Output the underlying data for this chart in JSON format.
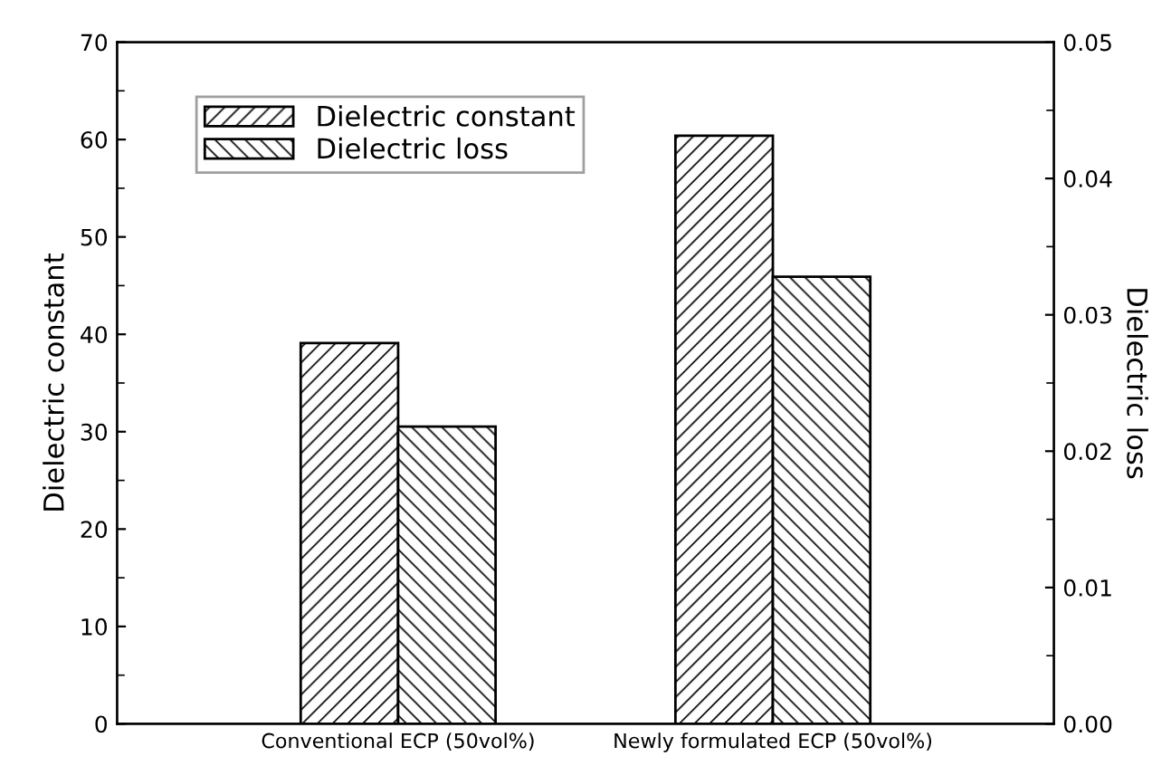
{
  "chart_data": {
    "type": "bar",
    "categories": [
      "Conventional ECP (50vol%)",
      "Newly formulated ECP (50vol%)"
    ],
    "series": [
      {
        "name": "Dielectric constant",
        "color": "#000000",
        "values": [
          39.1,
          60.4
        ]
      },
      {
        "name": "Dielectric loss",
        "color": "#000000",
        "axis": "y2",
        "values": [
          0.0218,
          0.0328
        ]
      }
    ],
    "ylabel": "Dielectric constant",
    "y2label": "Dielectric loss",
    "ylim": [
      0,
      70
    ],
    "yticks": [
      0,
      10,
      20,
      30,
      40,
      50,
      60,
      70
    ],
    "y2lim": [
      0,
      0.05
    ],
    "y2ticks": [
      {
        "value": 0,
        "label": "0.00"
      },
      {
        "value": 0.01,
        "label": "0.01"
      },
      {
        "value": 0.02,
        "label": "0.02"
      },
      {
        "value": 0.03,
        "label": "0.03"
      },
      {
        "value": 0.04,
        "label": "0.04"
      },
      {
        "value": 0.05,
        "label": "0.05"
      }
    ],
    "grid": false,
    "legend": "top left"
  }
}
